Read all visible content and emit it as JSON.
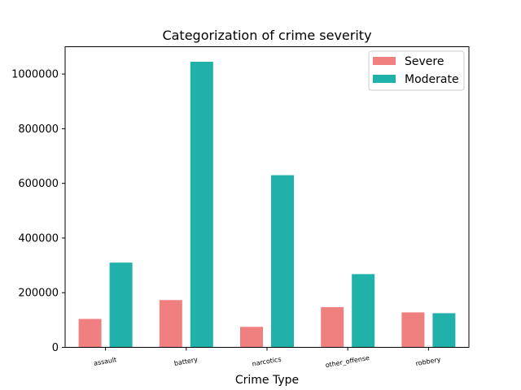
{
  "chart_data": {
    "type": "bar",
    "title": "Categorization of crime severity",
    "xlabel": "Crime Type",
    "ylabel": "",
    "categories": [
      "assault",
      "battery",
      "narcotics",
      "other_offense",
      "robbery"
    ],
    "series": [
      {
        "name": "Severe",
        "color": "#f08080",
        "values": [
          104000,
          173000,
          75000,
          147000,
          128000
        ]
      },
      {
        "name": "Moderate",
        "color": "#20b2aa",
        "values": [
          310000,
          1045000,
          630000,
          268000,
          125000
        ]
      }
    ],
    "ylim": [
      0,
      1100000
    ],
    "yticks": [
      0,
      200000,
      400000,
      600000,
      800000,
      1000000
    ],
    "yticklabels": [
      "0",
      "200000",
      "400000",
      "600000",
      "800000",
      "1000000"
    ],
    "legend": "top-right",
    "grid": false
  }
}
